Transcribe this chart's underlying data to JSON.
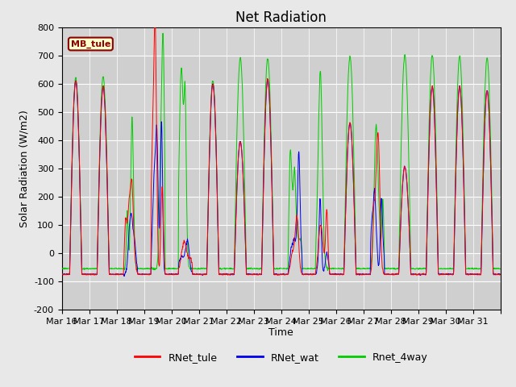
{
  "title": "Net Radiation",
  "xlabel": "Time",
  "ylabel": "Solar Radiation (W/m2)",
  "ylim": [
    -200,
    800
  ],
  "yticks": [
    -200,
    -100,
    0,
    100,
    200,
    300,
    400,
    500,
    600,
    700,
    800
  ],
  "xtick_labels": [
    "Mar 16",
    "Mar 17",
    "Mar 18",
    "Mar 19",
    "Mar 20",
    "Mar 21",
    "Mar 22",
    "Mar 23",
    "Mar 24",
    "Mar 25",
    "Mar 26",
    "Mar 27",
    "Mar 28",
    "Mar 29",
    "Mar 30",
    "Mar 31"
  ],
  "site_label": "MB_tule",
  "legend_labels": [
    "RNet_tule",
    "RNet_wat",
    "Rnet_4way"
  ],
  "line_colors": [
    "#ff0000",
    "#0000ee",
    "#00cc00"
  ],
  "fig_bg": "#e8e8e8",
  "plot_bg": "#d4d4d4",
  "title_fontsize": 12,
  "label_fontsize": 9,
  "tick_fontsize": 8,
  "n_days": 16,
  "pts_per_day": 144,
  "night_rb": -75,
  "night_g": -55,
  "day_start": 0.28,
  "day_end": 0.72,
  "day_peaks_rb": [
    610,
    590,
    100,
    270,
    10,
    600,
    395,
    615,
    65,
    70,
    460,
    150,
    305,
    590,
    590,
    575
  ],
  "day_peaks_g": [
    620,
    625,
    490,
    450,
    375,
    610,
    690,
    688,
    200,
    515,
    695,
    265,
    700,
    700,
    695,
    690
  ],
  "cloudy_days": [
    2,
    3,
    4,
    8,
    9,
    11
  ],
  "lw": 0.7
}
